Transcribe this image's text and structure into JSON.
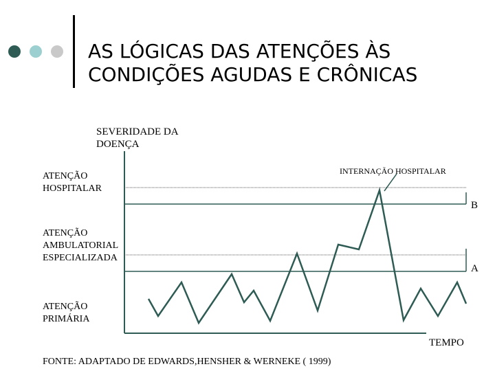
{
  "header": {
    "title_line1": "AS LÓGICAS DAS ATENÇÕES ÀS",
    "title_line2": "CONDIÇÕES AGUDAS E CRÔNICAS",
    "dot_colors": [
      "#2e5c55",
      "#9ccfd0",
      "#c9c9c9"
    ]
  },
  "diagram": {
    "y_axis_label_line1": "SEVERIDADE DA",
    "y_axis_label_line2": "DOENÇA",
    "x_axis_label": "TEMPO",
    "levels": [
      {
        "line1": "ATENÇÃO",
        "line2": "HOSPITALAR",
        "line3": ""
      },
      {
        "line1": "ATENÇÃO",
        "line2": "AMBULATORIAL",
        "line3": "ESPECIALIZADA"
      },
      {
        "line1": "ATENÇÃO",
        "line2": "PRIMÁRIA",
        "line3": ""
      }
    ],
    "threshold_b": "B",
    "threshold_a": "A",
    "callout": "INTERNAÇÃO HOSPITALAR",
    "line_color": "#2e5c55"
  },
  "footer": {
    "source": "FONTE: ADAPTADO DE  EDWARDS,HENSHER & WERNEKE ( 1999)"
  }
}
